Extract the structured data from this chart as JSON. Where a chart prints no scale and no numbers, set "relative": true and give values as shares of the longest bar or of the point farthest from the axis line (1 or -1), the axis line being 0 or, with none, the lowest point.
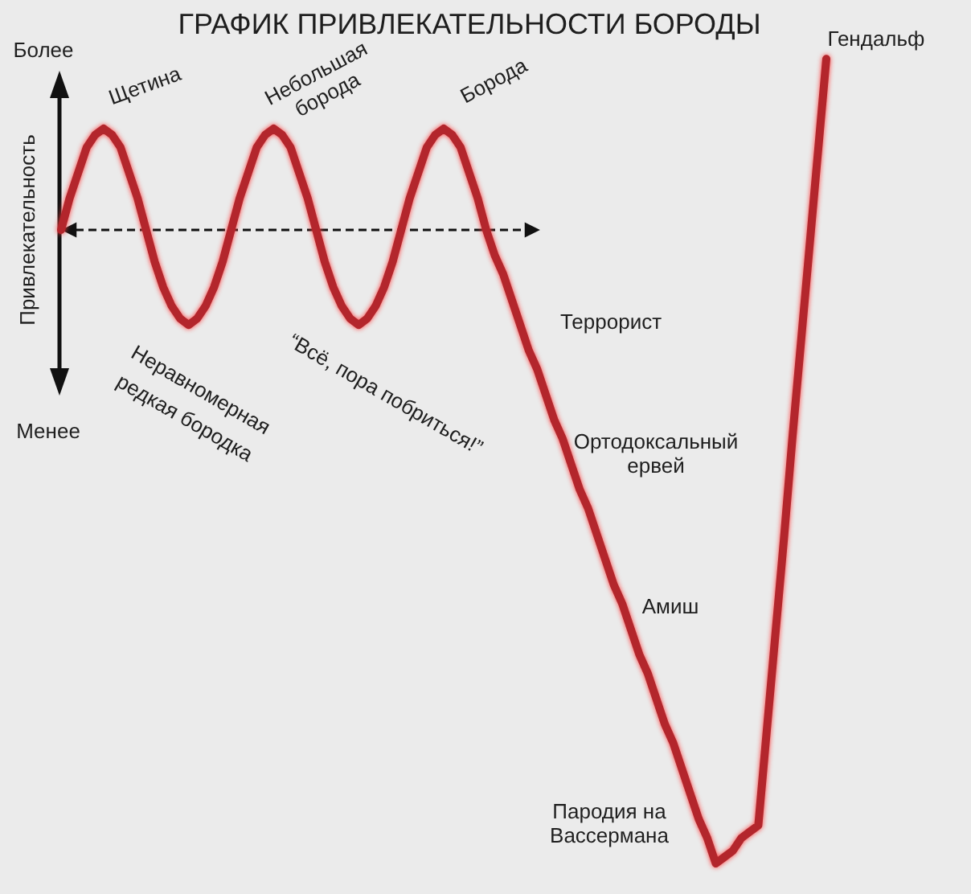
{
  "chart_data": {
    "type": "line",
    "title": "ГРАФИК ПРИВЛЕКАТЕЛЬНОСТИ БОРОДЫ",
    "ylabel": "Привлекательность",
    "relative": true,
    "color": "#b3262c",
    "categories": [
      null,
      null,
      null,
      null,
      null,
      null,
      null,
      null,
      null,
      null,
      null,
      null,
      null,
      null,
      null,
      null,
      null,
      null,
      null,
      null,
      null,
      null,
      null,
      null,
      null,
      null,
      null,
      null,
      null,
      null,
      null,
      null,
      null,
      null,
      null,
      null,
      null,
      null,
      null,
      null,
      null,
      null,
      null,
      null,
      null,
      null,
      null,
      null,
      null,
      null,
      null,
      null,
      null,
      null,
      null,
      null,
      null,
      null,
      null,
      null,
      null,
      null,
      null,
      null,
      null,
      null,
      null,
      null,
      null,
      null,
      null,
      null,
      null,
      null,
      null,
      null,
      null,
      null,
      null,
      null,
      null,
      null,
      null,
      null,
      null,
      null,
      null,
      null,
      null,
      null,
      null
    ],
    "values": [
      0,
      0.05,
      0.09,
      0.13,
      0.15,
      0.16,
      0.15,
      0.13,
      0.09,
      0.05,
      0,
      -0.05,
      -0.09,
      -0.12,
      -0.14,
      -0.15,
      -0.14,
      -0.12,
      -0.09,
      -0.05,
      0,
      0.05,
      0.09,
      0.13,
      0.15,
      0.16,
      0.15,
      0.13,
      0.09,
      0.05,
      0,
      -0.05,
      -0.09,
      -0.12,
      -0.14,
      -0.15,
      -0.14,
      -0.12,
      -0.09,
      -0.05,
      0,
      0.05,
      0.09,
      0.13,
      0.15,
      0.16,
      0.15,
      0.13,
      0.09,
      0.05,
      0,
      -0.04,
      -0.07,
      -0.11,
      -0.15,
      -0.19,
      -0.22,
      -0.26,
      -0.3,
      -0.33,
      -0.37,
      -0.41,
      -0.44,
      -0.48,
      -0.52,
      -0.56,
      -0.59,
      -0.63,
      -0.67,
      -0.7,
      -0.74,
      -0.78,
      -0.81,
      -0.85,
      -0.89,
      -0.93,
      -0.96,
      -1,
      -0.99,
      -0.98,
      -0.96,
      -0.95,
      -0.94,
      -0.79,
      -0.64,
      -0.49,
      -0.33,
      -0.18,
      -0.03,
      0.12,
      0.27
    ],
    "annotations": [
      "Более",
      "Менее",
      "Щетина",
      "Небольшая борода",
      "Борода",
      "Неравномерная редкая бородка",
      "“Всё, пора побриться!”",
      "Террорист",
      "Ортодоксальный ервей",
      "Амиш",
      "Пародия на Вассермана",
      "Гендальф"
    ]
  }
}
